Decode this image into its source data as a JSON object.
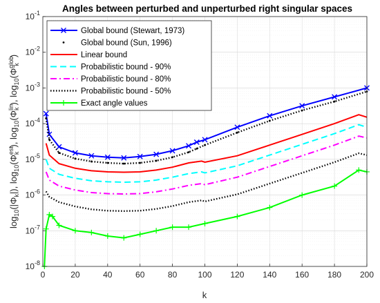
{
  "chart_data": {
    "type": "line",
    "title": "Angles between perturbed and unperturbed right singular spaces",
    "xlabel": "k",
    "ylabel_parts": {
      "p1": "log",
      "p1sub": "10",
      "p2": "(|Φ",
      "p2sub": "k",
      "p3": "|), log",
      "p3sub": "10",
      "p4": "(Φ",
      "p4sup": "est",
      "p4sub": "k",
      "p5": "), log",
      "p5sub": "10",
      "p6": "(Φ",
      "p6sup": "lin",
      "p6sub": "k",
      "p7": "), log",
      "p7sub": "10",
      "p8": "(Φ",
      "p8sup": "glob",
      "p8sub": "k",
      "p9": ")"
    },
    "xlim": [
      0,
      200
    ],
    "ylim_log10": [
      -8,
      -1
    ],
    "yscale": "log",
    "grid": true,
    "legend_position": "top-left",
    "xticks": [
      "0",
      "20",
      "40",
      "60",
      "80",
      "100",
      "120",
      "140",
      "160",
      "180",
      "200"
    ],
    "yticks": [
      {
        "base": "10",
        "exp": "-1"
      },
      {
        "base": "10",
        "exp": "-2"
      },
      {
        "base": "10",
        "exp": "-3"
      },
      {
        "base": "10",
        "exp": "-4"
      },
      {
        "base": "10",
        "exp": "-5"
      },
      {
        "base": "10",
        "exp": "-6"
      },
      {
        "base": "10",
        "exp": "-7"
      },
      {
        "base": "10",
        "exp": "-8"
      }
    ],
    "series": [
      {
        "name": "Global bound (Stewart, 1973)",
        "color": "#0000ff",
        "style": "solid",
        "marker": "x",
        "points": [
          [
            2,
            -3.72
          ],
          [
            4,
            -4.3
          ],
          [
            10,
            -4.65
          ],
          [
            20,
            -4.82
          ],
          [
            30,
            -4.9
          ],
          [
            40,
            -4.94
          ],
          [
            50,
            -4.96
          ],
          [
            60,
            -4.92
          ],
          [
            70,
            -4.86
          ],
          [
            80,
            -4.76
          ],
          [
            90,
            -4.62
          ],
          [
            95,
            -4.52
          ],
          [
            100,
            -4.45
          ],
          [
            120,
            -4.1
          ],
          [
            140,
            -3.78
          ],
          [
            160,
            -3.5
          ],
          [
            180,
            -3.25
          ],
          [
            200,
            -3.0
          ]
        ]
      },
      {
        "name": "Global bound (Sun, 1996)",
        "color": "#000000",
        "style": "dot",
        "marker": "dot",
        "points": [
          [
            2,
            -3.85
          ],
          [
            4,
            -4.45
          ],
          [
            10,
            -4.82
          ],
          [
            20,
            -4.98
          ],
          [
            30,
            -5.06
          ],
          [
            40,
            -5.1
          ],
          [
            50,
            -5.12
          ],
          [
            60,
            -5.1
          ],
          [
            70,
            -5.04
          ],
          [
            80,
            -4.94
          ],
          [
            90,
            -4.8
          ],
          [
            95,
            -4.7
          ],
          [
            100,
            -4.6
          ],
          [
            120,
            -4.25
          ],
          [
            140,
            -3.92
          ],
          [
            160,
            -3.63
          ],
          [
            180,
            -3.38
          ],
          [
            200,
            -3.1
          ]
        ]
      },
      {
        "name": "Linear bound",
        "color": "#ff0000",
        "style": "solid",
        "marker": "none",
        "points": [
          [
            2,
            -4.55
          ],
          [
            4,
            -4.88
          ],
          [
            10,
            -5.12
          ],
          [
            20,
            -5.25
          ],
          [
            30,
            -5.32
          ],
          [
            40,
            -5.35
          ],
          [
            50,
            -5.36
          ],
          [
            60,
            -5.35
          ],
          [
            70,
            -5.3
          ],
          [
            80,
            -5.22
          ],
          [
            90,
            -5.1
          ],
          [
            98,
            -5.05
          ],
          [
            100,
            -5.08
          ],
          [
            120,
            -4.9
          ],
          [
            140,
            -4.6
          ],
          [
            160,
            -4.3
          ],
          [
            180,
            -4.0
          ],
          [
            195,
            -3.75
          ],
          [
            200,
            -3.82
          ]
        ]
      },
      {
        "name": "Probabilistic bound - 90%",
        "color": "#00ffff",
        "style": "dash",
        "marker": "none",
        "points": [
          [
            2,
            -5.0
          ],
          [
            4,
            -5.25
          ],
          [
            10,
            -5.42
          ],
          [
            20,
            -5.53
          ],
          [
            30,
            -5.6
          ],
          [
            40,
            -5.63
          ],
          [
            50,
            -5.64
          ],
          [
            60,
            -5.63
          ],
          [
            70,
            -5.58
          ],
          [
            80,
            -5.5
          ],
          [
            90,
            -5.4
          ],
          [
            98,
            -5.35
          ],
          [
            100,
            -5.38
          ],
          [
            120,
            -5.18
          ],
          [
            140,
            -4.88
          ],
          [
            160,
            -4.58
          ],
          [
            180,
            -4.28
          ],
          [
            195,
            -4.03
          ],
          [
            200,
            -4.1
          ]
        ]
      },
      {
        "name": "Probabilistic bound - 80%",
        "color": "#ff00ff",
        "style": "dashdot",
        "marker": "none",
        "points": [
          [
            2,
            -5.35
          ],
          [
            4,
            -5.58
          ],
          [
            10,
            -5.75
          ],
          [
            20,
            -5.86
          ],
          [
            30,
            -5.93
          ],
          [
            40,
            -5.96
          ],
          [
            50,
            -5.97
          ],
          [
            60,
            -5.96
          ],
          [
            70,
            -5.91
          ],
          [
            80,
            -5.83
          ],
          [
            90,
            -5.73
          ],
          [
            98,
            -5.68
          ],
          [
            100,
            -5.71
          ],
          [
            120,
            -5.5
          ],
          [
            140,
            -5.2
          ],
          [
            160,
            -4.9
          ],
          [
            180,
            -4.6
          ],
          [
            195,
            -4.35
          ],
          [
            200,
            -4.4
          ]
        ]
      },
      {
        "name": "Probabilistic bound - 50%",
        "color": "#000000",
        "style": "dot",
        "marker": "none",
        "points": [
          [
            2,
            -5.9
          ],
          [
            4,
            -6.05
          ],
          [
            10,
            -6.2
          ],
          [
            20,
            -6.32
          ],
          [
            30,
            -6.4
          ],
          [
            40,
            -6.44
          ],
          [
            50,
            -6.45
          ],
          [
            60,
            -6.44
          ],
          [
            70,
            -6.39
          ],
          [
            80,
            -6.31
          ],
          [
            90,
            -6.2
          ],
          [
            98,
            -6.15
          ],
          [
            100,
            -6.18
          ],
          [
            120,
            -5.98
          ],
          [
            140,
            -5.68
          ],
          [
            160,
            -5.38
          ],
          [
            180,
            -5.08
          ],
          [
            195,
            -4.83
          ],
          [
            200,
            -4.88
          ]
        ]
      },
      {
        "name": "Exact angle values",
        "color": "#00ff00",
        "style": "solid",
        "marker": "+",
        "points": [
          [
            1,
            -8.0
          ],
          [
            2,
            -6.95
          ],
          [
            4,
            -6.55
          ],
          [
            6,
            -6.6
          ],
          [
            10,
            -6.85
          ],
          [
            20,
            -7.0
          ],
          [
            30,
            -7.05
          ],
          [
            40,
            -7.15
          ],
          [
            50,
            -7.2
          ],
          [
            60,
            -7.1
          ],
          [
            70,
            -7.0
          ],
          [
            80,
            -6.9
          ],
          [
            90,
            -6.9
          ],
          [
            100,
            -6.8
          ],
          [
            120,
            -6.6
          ],
          [
            140,
            -6.35
          ],
          [
            160,
            -6.0
          ],
          [
            180,
            -5.75
          ],
          [
            195,
            -5.3
          ],
          [
            200,
            -5.35
          ]
        ]
      }
    ]
  }
}
